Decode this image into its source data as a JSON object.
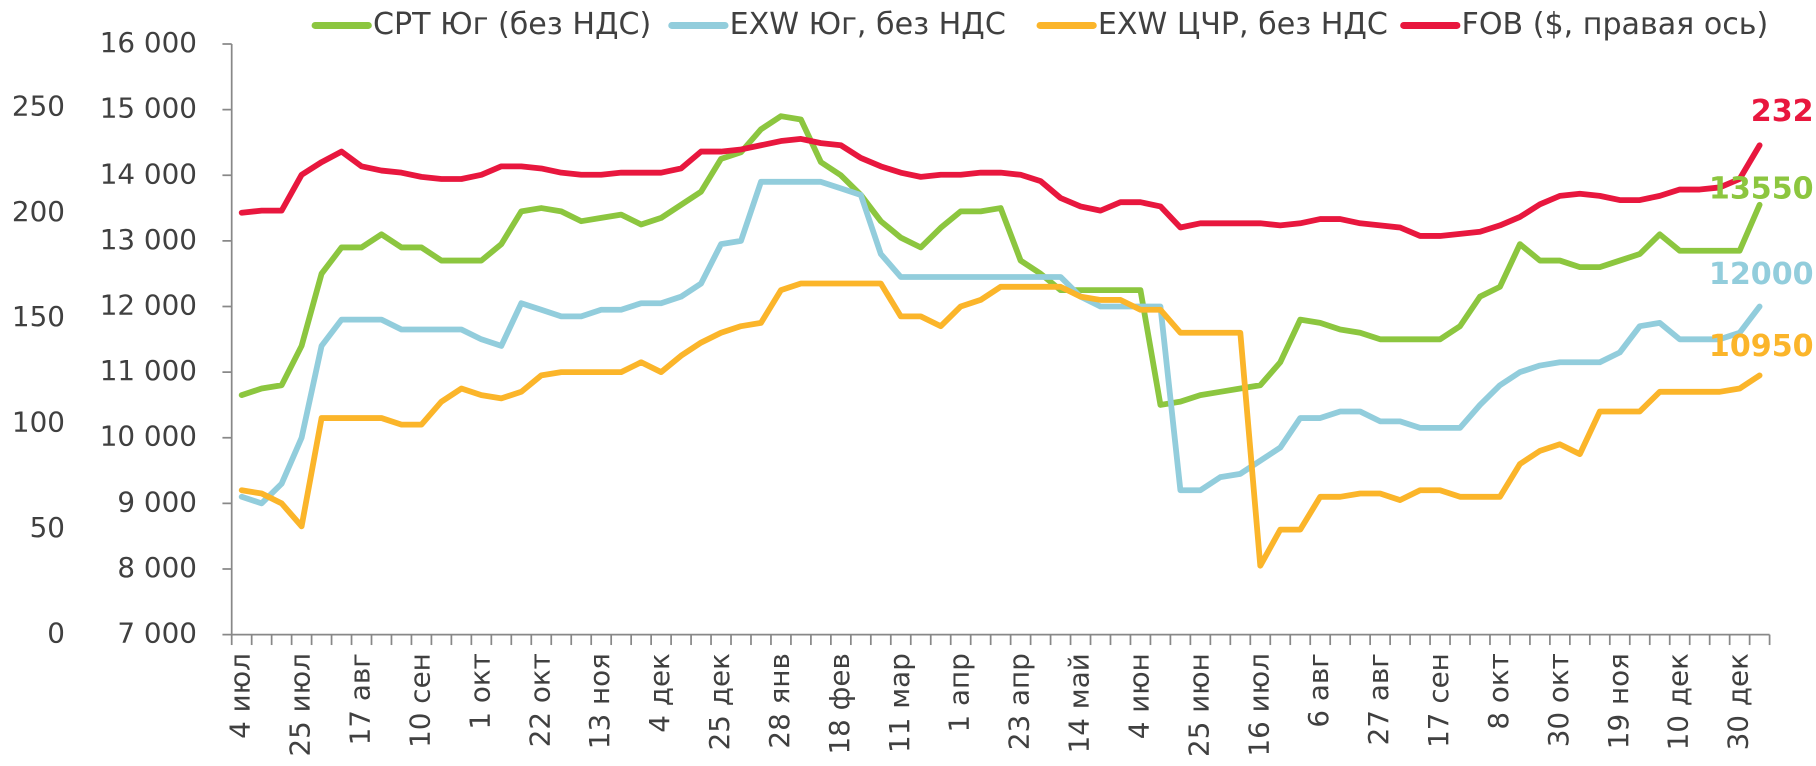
{
  "chart_data": {
    "type": "line",
    "legend": "top",
    "categories": [
      "4 июл",
      null,
      null,
      "25 июл",
      null,
      null,
      "17 авг",
      null,
      null,
      "10 сен",
      null,
      null,
      "1 окт",
      null,
      null,
      "22 окт",
      null,
      null,
      "13 ноя",
      null,
      null,
      "4 дек",
      null,
      null,
      "25 дек",
      null,
      null,
      "28 янв",
      null,
      null,
      "18 фев",
      null,
      null,
      "11 мар",
      null,
      null,
      "1 апр",
      null,
      null,
      "23 апр",
      null,
      null,
      "14 май",
      null,
      null,
      "4 июн",
      null,
      null,
      "25 июн",
      null,
      null,
      "16 июл",
      null,
      null,
      "6 авг",
      null,
      null,
      "27 авг",
      null,
      null,
      "17 сен",
      null,
      null,
      "8 окт",
      null,
      null,
      "30 окт",
      null,
      null,
      "19 ноя",
      null,
      null,
      "10 дек",
      null,
      null,
      "30 дек",
      null
    ],
    "ylim": [
      7000,
      16000
    ],
    "yticks": [
      {
        "value": 7000,
        "label": "7 000"
      },
      {
        "value": 8000,
        "label": "8 000"
      },
      {
        "value": 9000,
        "label": "9 000"
      },
      {
        "value": 10000,
        "label": "10 000"
      },
      {
        "value": 11000,
        "label": "11 000"
      },
      {
        "value": 12000,
        "label": "12 000"
      },
      {
        "value": 13000,
        "label": "13 000"
      },
      {
        "value": 14000,
        "label": "14 000"
      },
      {
        "value": 15000,
        "label": "15 000"
      },
      {
        "value": 16000,
        "label": "16 000"
      }
    ],
    "y2lim": [
      0,
      280
    ],
    "y2ticks": [
      0,
      50,
      100,
      150,
      200,
      250
    ],
    "series": [
      {
        "name": "CPT Юг (без НДС)",
        "color": "#8cc63f",
        "values": [
          10650,
          10750,
          10800,
          11400,
          12500,
          12900,
          12900,
          13100,
          12900,
          12900,
          12700,
          12700,
          12700,
          12950,
          13450,
          13500,
          13450,
          13300,
          13350,
          13400,
          13250,
          13350,
          13550,
          13750,
          14250,
          14350,
          14700,
          14900,
          14850,
          14200,
          14000,
          13700,
          13300,
          13050,
          12900,
          13200,
          13450,
          13450,
          13500,
          12700,
          12500,
          12250,
          12250,
          12250,
          12250,
          12250,
          10500,
          10550,
          10650,
          10700,
          10750,
          10800,
          11150,
          11800,
          11750,
          11650,
          11600,
          11500,
          11500,
          11500,
          11500,
          11700,
          12150,
          12300,
          12950,
          12700,
          12700,
          12600,
          12600,
          12700,
          12800,
          13100,
          12850,
          12850,
          12850,
          12850,
          13550
        ]
      },
      {
        "name": "EXW Юг, без НДС",
        "color": "#92cddc",
        "values": [
          9100,
          9000,
          9300,
          10000,
          11400,
          11800,
          11800,
          11800,
          11650,
          11650,
          11650,
          11650,
          11500,
          11400,
          12050,
          11950,
          11850,
          11850,
          11950,
          11950,
          12050,
          12050,
          12150,
          12350,
          12950,
          13000,
          13900,
          13900,
          13900,
          13900,
          13800,
          13700,
          12800,
          12450,
          12450,
          12450,
          12450,
          12450,
          12450,
          12450,
          12450,
          12450,
          12150,
          12000,
          12000,
          12000,
          12000,
          9200,
          9200,
          9400,
          9450,
          9650,
          9850,
          10300,
          10300,
          10400,
          10400,
          10250,
          10250,
          10150,
          10150,
          10150,
          10500,
          10800,
          11000,
          11100,
          11150,
          11150,
          11150,
          11300,
          11700,
          11750,
          11500,
          11500,
          11500,
          11600,
          12000
        ]
      },
      {
        "name": "EXW ЦЧР, без НДС",
        "color": "#fbb52a",
        "values": [
          9200,
          9150,
          9000,
          8650,
          10300,
          10300,
          10300,
          10300,
          10200,
          10200,
          10550,
          10750,
          10650,
          10600,
          10700,
          10950,
          11000,
          11000,
          11000,
          11000,
          11150,
          11000,
          11250,
          11450,
          11600,
          11700,
          11750,
          12250,
          12350,
          12350,
          12350,
          12350,
          12350,
          11850,
          11850,
          11700,
          12000,
          12100,
          12300,
          12300,
          12300,
          12300,
          12150,
          12100,
          12100,
          11950,
          11950,
          11600,
          11600,
          11600,
          11600,
          8050,
          8600,
          8600,
          9100,
          9100,
          9150,
          9150,
          9050,
          9200,
          9200,
          9100,
          9100,
          9100,
          9600,
          9800,
          9900,
          9750,
          10400,
          10400,
          10400,
          10700,
          10700,
          10700,
          10700,
          10750,
          10950
        ]
      },
      {
        "name": "FOB ($, правая ось)",
        "color": "#e8173e",
        "axis": "y2",
        "values": [
          200,
          201,
          201,
          218,
          224,
          229,
          222,
          220,
          219,
          217,
          216,
          216,
          218,
          222,
          222,
          221,
          219,
          218,
          218,
          219,
          219,
          219,
          221,
          229,
          229,
          230,
          232,
          234,
          235,
          233,
          232,
          226,
          222,
          219,
          217,
          218,
          218,
          219,
          219,
          218,
          215,
          207,
          203,
          201,
          205,
          205,
          203,
          193,
          195,
          195,
          195,
          195,
          194,
          195,
          197,
          197,
          195,
          194,
          193,
          189,
          189,
          190,
          191,
          194,
          198,
          204,
          208,
          209,
          208,
          206,
          206,
          208,
          211,
          211,
          212,
          216,
          232
        ]
      }
    ]
  }
}
